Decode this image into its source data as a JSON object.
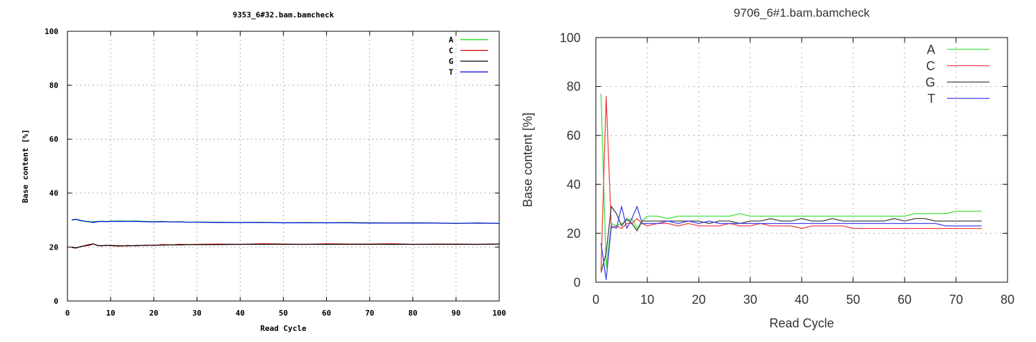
{
  "chart_data": [
    {
      "type": "line",
      "title": "9353_6#32.bam.bamcheck",
      "xlabel": "Read Cycle",
      "ylabel": "Base content [%]",
      "xlim": [
        0,
        100
      ],
      "ylim": [
        0,
        100
      ],
      "xticks": [
        "0",
        "10",
        "20",
        "30",
        "40",
        "50",
        "60",
        "70",
        "80",
        "90",
        "100"
      ],
      "yticks": [
        "0",
        "20",
        "40",
        "60",
        "80",
        "100"
      ],
      "grid": true,
      "legend_position": "top-right",
      "series": [
        {
          "name": "A",
          "color": "#00e000",
          "x": [
            1,
            2,
            3,
            4,
            5,
            6,
            7,
            8,
            9,
            10,
            12,
            14,
            16,
            18,
            20,
            22,
            24,
            26,
            28,
            30,
            35,
            40,
            45,
            50,
            55,
            60,
            65,
            70,
            75,
            80,
            85,
            90,
            95,
            100
          ],
          "values": [
            30.0,
            30.2,
            29.8,
            29.5,
            29.3,
            29.4,
            29.5,
            29.6,
            29.5,
            29.6,
            29.7,
            29.6,
            29.7,
            29.5,
            29.4,
            29.5,
            29.3,
            29.4,
            29.2,
            29.3,
            29.2,
            29.1,
            29.2,
            29.0,
            29.1,
            29.0,
            29.1,
            29.0,
            28.9,
            29.0,
            28.9,
            28.8,
            28.9,
            28.8
          ]
        },
        {
          "name": "C",
          "color": "#e00000",
          "x": [
            1,
            2,
            3,
            4,
            5,
            6,
            7,
            8,
            9,
            10,
            12,
            14,
            16,
            18,
            20,
            22,
            24,
            26,
            28,
            30,
            35,
            40,
            45,
            50,
            55,
            60,
            65,
            70,
            75,
            80,
            85,
            90,
            95,
            100
          ],
          "values": [
            19.8,
            19.6,
            20.2,
            20.4,
            20.6,
            21.2,
            20.5,
            20.4,
            20.7,
            20.5,
            20.3,
            20.6,
            20.4,
            20.7,
            20.6,
            20.9,
            20.8,
            21.0,
            20.9,
            21.0,
            21.1,
            21.0,
            21.2,
            21.1,
            21.0,
            21.2,
            21.1,
            21.1,
            21.2,
            21.0,
            21.1,
            21.1,
            21.0,
            21.1
          ]
        },
        {
          "name": "G",
          "color": "#000000",
          "x": [
            1,
            2,
            3,
            4,
            5,
            6,
            7,
            8,
            9,
            10,
            12,
            14,
            16,
            18,
            20,
            22,
            24,
            26,
            28,
            30,
            35,
            40,
            45,
            50,
            55,
            60,
            65,
            70,
            75,
            80,
            85,
            90,
            95,
            100
          ],
          "values": [
            20.0,
            19.7,
            20.1,
            20.5,
            20.9,
            21.1,
            20.6,
            20.5,
            20.6,
            20.6,
            20.5,
            20.4,
            20.6,
            20.6,
            20.7,
            20.7,
            20.8,
            20.8,
            20.9,
            20.9,
            20.9,
            21.0,
            21.0,
            21.0,
            21.0,
            21.0,
            21.0,
            21.0,
            21.0,
            21.0,
            21.0,
            21.0,
            21.0,
            21.1
          ]
        },
        {
          "name": "T",
          "color": "#0000e0",
          "x": [
            1,
            2,
            3,
            4,
            5,
            6,
            7,
            8,
            9,
            10,
            12,
            14,
            16,
            18,
            20,
            22,
            24,
            26,
            28,
            30,
            35,
            40,
            45,
            50,
            55,
            60,
            65,
            70,
            75,
            80,
            85,
            90,
            95,
            100
          ],
          "values": [
            30.1,
            30.3,
            29.9,
            29.6,
            29.4,
            29.1,
            29.4,
            29.5,
            29.4,
            29.5,
            29.5,
            29.5,
            29.5,
            29.4,
            29.3,
            29.4,
            29.3,
            29.3,
            29.2,
            29.2,
            29.1,
            29.1,
            29.1,
            29.0,
            29.0,
            29.0,
            29.0,
            28.9,
            28.9,
            28.9,
            28.9,
            28.8,
            28.9,
            28.8
          ]
        }
      ]
    },
    {
      "type": "line",
      "title": "9706_6#1.bam.bamcheck",
      "xlabel": "Read Cycle",
      "ylabel": "Base content [%]",
      "xlim": [
        0,
        80
      ],
      "ylim": [
        0,
        100
      ],
      "xticks": [
        "0",
        "10",
        "20",
        "30",
        "40",
        "50",
        "60",
        "70",
        "80"
      ],
      "yticks": [
        "0",
        "20",
        "40",
        "60",
        "80",
        "100"
      ],
      "grid": true,
      "legend_position": "top-right",
      "series": [
        {
          "name": "A",
          "color": "#40e040",
          "x": [
            1,
            2,
            3,
            4,
            5,
            6,
            7,
            8,
            9,
            10,
            12,
            14,
            16,
            18,
            20,
            22,
            24,
            26,
            28,
            30,
            32,
            34,
            36,
            38,
            40,
            42,
            44,
            46,
            48,
            50,
            52,
            54,
            56,
            58,
            60,
            62,
            64,
            66,
            68,
            70,
            72,
            74,
            75
          ],
          "values": [
            77,
            6,
            24,
            23,
            24,
            25,
            26,
            22,
            25,
            27,
            27,
            26,
            27,
            27,
            27,
            27,
            27,
            27,
            28,
            27,
            27,
            27,
            27,
            27,
            27,
            27,
            27,
            27,
            27,
            27,
            27,
            27,
            27,
            27,
            27,
            28,
            28,
            28,
            28,
            29,
            29,
            29,
            29
          ]
        },
        {
          "name": "C",
          "color": "#f04040",
          "x": [
            1,
            2,
            3,
            4,
            5,
            6,
            7,
            8,
            9,
            10,
            12,
            14,
            16,
            18,
            20,
            22,
            24,
            26,
            28,
            30,
            32,
            34,
            36,
            38,
            40,
            42,
            44,
            46,
            48,
            50,
            52,
            54,
            56,
            58,
            60,
            62,
            64,
            66,
            68,
            70,
            72,
            74,
            75
          ],
          "values": [
            5,
            76,
            22,
            23,
            22,
            24,
            24,
            26,
            24,
            23,
            24,
            24,
            23,
            24,
            23,
            23,
            23,
            24,
            23,
            23,
            24,
            23,
            23,
            23,
            22,
            23,
            23,
            23,
            23,
            22,
            22,
            22,
            22,
            22,
            22,
            22,
            22,
            22,
            22,
            22,
            22,
            22,
            22
          ]
        },
        {
          "name": "G",
          "color": "#404040",
          "x": [
            1,
            2,
            3,
            4,
            5,
            6,
            7,
            8,
            9,
            10,
            12,
            14,
            16,
            18,
            20,
            22,
            24,
            26,
            28,
            30,
            32,
            34,
            36,
            38,
            40,
            42,
            44,
            46,
            48,
            50,
            52,
            54,
            56,
            58,
            60,
            62,
            64,
            66,
            68,
            70,
            72,
            74,
            75
          ],
          "values": [
            4,
            12,
            31,
            28,
            23,
            26,
            24,
            21,
            25,
            25,
            25,
            25,
            25,
            25,
            25,
            24,
            25,
            25,
            24,
            25,
            25,
            26,
            25,
            25,
            26,
            25,
            25,
            26,
            25,
            25,
            25,
            25,
            25,
            26,
            25,
            26,
            26,
            25,
            25,
            25,
            25,
            25,
            25
          ]
        },
        {
          "name": "T",
          "color": "#4040f0",
          "x": [
            1,
            2,
            3,
            4,
            5,
            6,
            7,
            8,
            9,
            10,
            12,
            14,
            16,
            18,
            20,
            22,
            24,
            26,
            28,
            30,
            32,
            34,
            36,
            38,
            40,
            42,
            44,
            46,
            48,
            50,
            52,
            54,
            56,
            58,
            60,
            62,
            64,
            66,
            68,
            70,
            72,
            74,
            75
          ],
          "values": [
            16,
            1,
            23,
            22,
            31,
            22,
            26,
            31,
            24,
            24,
            24,
            25,
            24,
            25,
            24,
            25,
            24,
            24,
            24,
            24,
            24,
            24,
            24,
            24,
            24,
            24,
            24,
            24,
            24,
            24,
            24,
            24,
            24,
            24,
            24,
            24,
            24,
            24,
            23,
            23,
            23,
            23,
            23
          ]
        }
      ]
    }
  ]
}
